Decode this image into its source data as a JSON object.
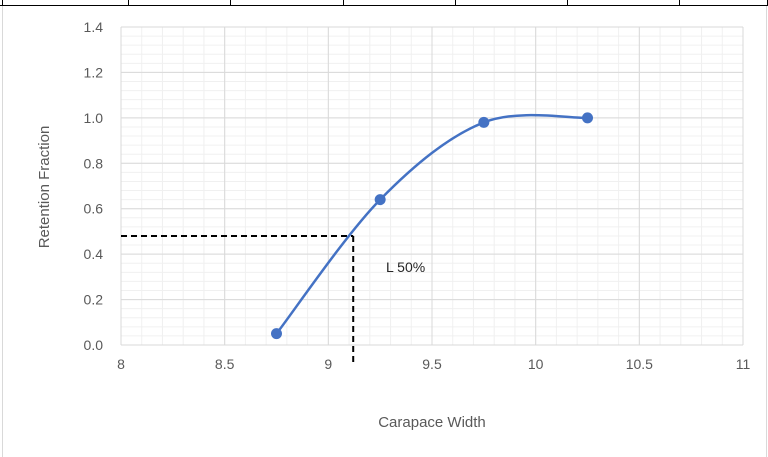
{
  "chart_data": {
    "type": "line",
    "title": "",
    "xlabel": "Carapace Width",
    "ylabel": "Retention Fraction",
    "xlim": [
      8,
      11
    ],
    "ylim": [
      0,
      1.4
    ],
    "x_ticks": [
      8,
      8.5,
      9,
      9.5,
      10,
      10.5,
      11
    ],
    "x_tick_labels": [
      "8",
      "8.5",
      "9",
      "9.5",
      "10",
      "10.5",
      "11"
    ],
    "y_ticks": [
      0,
      0.2,
      0.4,
      0.6,
      0.8,
      1.0,
      1.2,
      1.4
    ],
    "y_tick_labels": [
      "0.0",
      "0.2",
      "0.4",
      "0.6",
      "0.8",
      "1.0",
      "1.2",
      "1.4"
    ],
    "grid": true,
    "legend": "none",
    "series": [
      {
        "x": [
          8.75,
          9.25,
          9.75,
          10.25
        ],
        "y": [
          0.05,
          0.64,
          0.98,
          1.0
        ],
        "color": "#4472c4",
        "smooth": true
      }
    ],
    "reference": {
      "x": 9.12,
      "y": 0.48,
      "label": "L 50%"
    }
  }
}
